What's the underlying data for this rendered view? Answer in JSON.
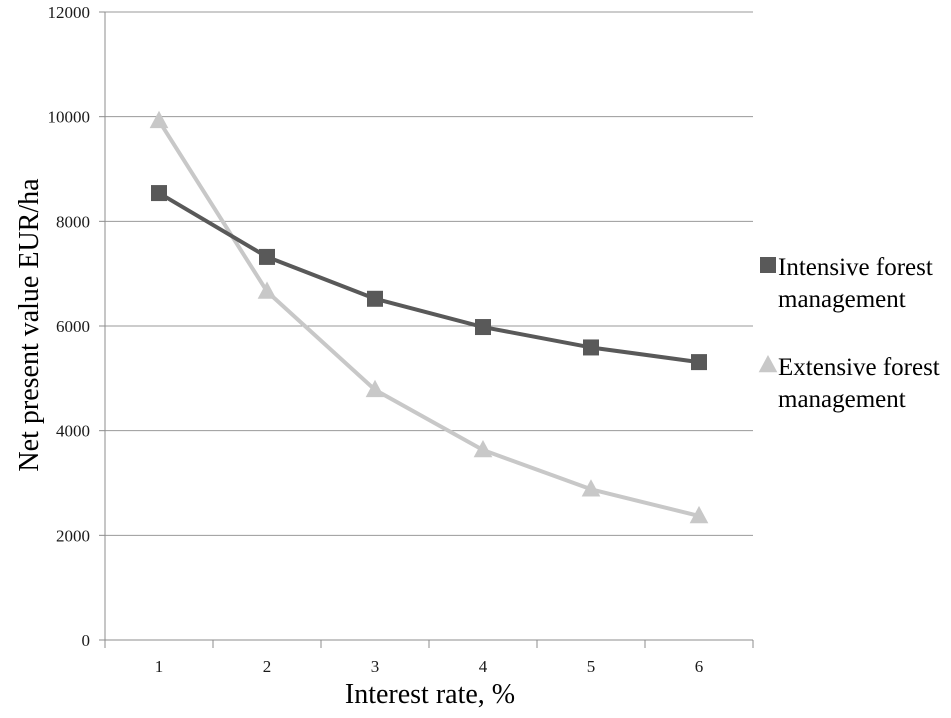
{
  "chart_data": {
    "type": "line",
    "title": "",
    "xlabel": "Interest rate, %",
    "ylabel": "Net present value EUR/ha",
    "categories": [
      "1",
      "2",
      "3",
      "4",
      "5",
      "6"
    ],
    "ylim": [
      0,
      12000
    ],
    "yticks": [
      0,
      2000,
      4000,
      6000,
      8000,
      10000,
      12000
    ],
    "grid": true,
    "legend_position": "right",
    "series": [
      {
        "name": "Intensive forest management",
        "name_lines": [
          "Intensive forest",
          "management"
        ],
        "marker": "square",
        "color": "#595959",
        "values": [
          8540,
          7320,
          6520,
          5980,
          5590,
          5310
        ]
      },
      {
        "name": "Extensive forest management",
        "name_lines": [
          "Extensive forest",
          "management"
        ],
        "marker": "triangle",
        "color": "#c8c8c8",
        "values": [
          9920,
          6660,
          4780,
          3630,
          2880,
          2370
        ]
      }
    ]
  }
}
